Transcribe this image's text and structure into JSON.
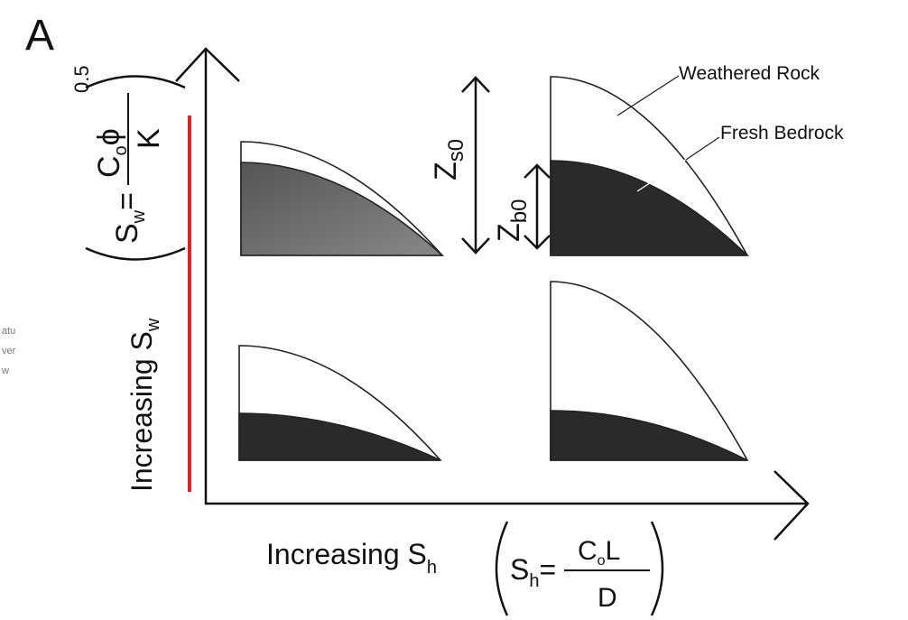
{
  "panel_label": "A",
  "y_axis_label": {
    "text": "Increasing S",
    "sub": "w"
  },
  "x_axis_label": {
    "text": "Increasing S",
    "sub": "h"
  },
  "sw_formula": {
    "lhs": "S",
    "lhs_sub": "w",
    "eq": "=",
    "num": "C",
    "num_sub": "o",
    "num_rest": "ϕ",
    "den": "K",
    "exp": "0.5"
  },
  "sh_formula": {
    "lhs": "S",
    "lhs_sub": "h",
    "eq": "=",
    "num": "C",
    "num_sub": "o",
    "num_rest": "L",
    "den": "D"
  },
  "legend": {
    "weathered": "Weathered Rock",
    "fresh": "Fresh Bedrock"
  },
  "zs0": {
    "main": "Z",
    "sub": "s0"
  },
  "zb0": {
    "main": "Z",
    "sub": "b0"
  },
  "margin_fragments": [
    "atu",
    "ver",
    "w"
  ]
}
